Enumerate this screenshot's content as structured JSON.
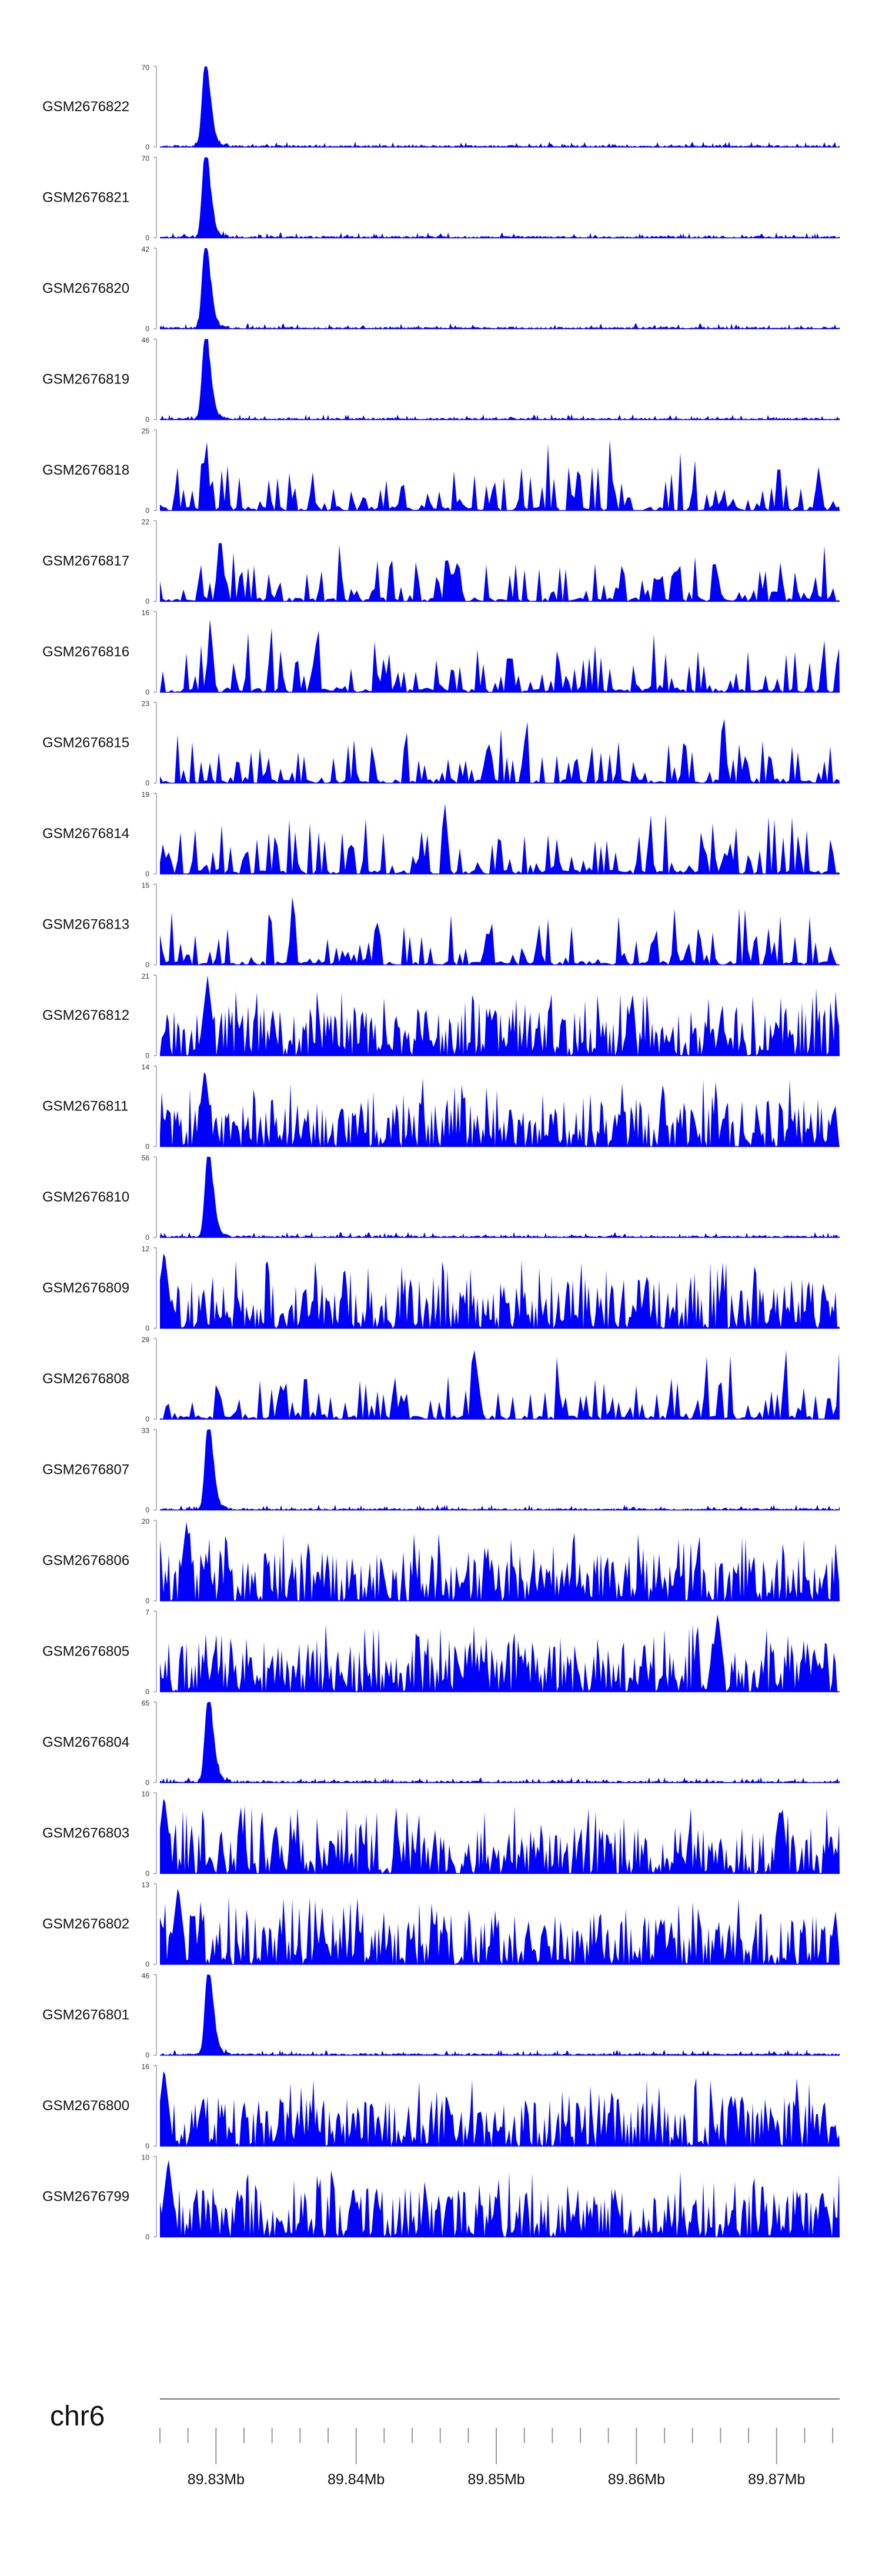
{
  "chart_data": {
    "type": "area",
    "subtype": "genome-coverage-tracks",
    "color": "#0000ff",
    "x_range_bp": [
      89826000,
      89874500
    ],
    "ylim_min": 0,
    "tracks": [
      {
        "name": "GSM2676822",
        "ymax": 70,
        "ymax_label": "70",
        "min_label": "0",
        "profile": "peak",
        "peak_bp": 89829200
      },
      {
        "name": "GSM2676821",
        "ymax": 70,
        "ymax_label": "70",
        "min_label": "0",
        "profile": "peak",
        "peak_bp": 89829200
      },
      {
        "name": "GSM2676820",
        "ymax": 42,
        "ymax_label": "42",
        "min_label": "0",
        "profile": "peak",
        "peak_bp": 89829200
      },
      {
        "name": "GSM2676819",
        "ymax": 46,
        "ymax_label": "46",
        "min_label": "0",
        "profile": "peak",
        "peak_bp": 89829200
      },
      {
        "name": "GSM2676818",
        "ymax": 25,
        "ymax_label": "25",
        "min_label": "0",
        "profile": "sparse",
        "peak_bp": 89829300
      },
      {
        "name": "GSM2676817",
        "ymax": 22,
        "ymax_label": "22",
        "min_label": "0",
        "profile": "sparse",
        "peak_bp": 89830300
      },
      {
        "name": "GSM2676816",
        "ymax": 16,
        "ymax_label": "16",
        "min_label": "0",
        "profile": "sparse",
        "peak_bp": 89829600
      },
      {
        "name": "GSM2676815",
        "ymax": 23,
        "ymax_label": "23",
        "min_label": "0",
        "profile": "sparse",
        "peak_bp": 89866200
      },
      {
        "name": "GSM2676814",
        "ymax": 19,
        "ymax_label": "19",
        "min_label": "0",
        "profile": "sparse",
        "peak_bp": 89846300
      },
      {
        "name": "GSM2676813",
        "ymax": 15,
        "ymax_label": "15",
        "min_label": "0",
        "profile": "sparse",
        "peak_bp": 89835500
      },
      {
        "name": "GSM2676812",
        "ymax": 21,
        "ymax_label": "21",
        "min_label": "0",
        "profile": "dense",
        "peak_bp": 89829400
      },
      {
        "name": "GSM2676811",
        "ymax": 14,
        "ymax_label": "14",
        "min_label": "0",
        "profile": "dense",
        "peak_bp": 89829200
      },
      {
        "name": "GSM2676810",
        "ymax": 56,
        "ymax_label": "56",
        "min_label": "0",
        "profile": "peak",
        "peak_bp": 89829400
      },
      {
        "name": "GSM2676809",
        "ymax": 12,
        "ymax_label": "12",
        "min_label": "0",
        "profile": "dense",
        "peak_bp": 89826300
      },
      {
        "name": "GSM2676808",
        "ymax": 29,
        "ymax_label": "29",
        "min_label": "0",
        "profile": "sparse",
        "peak_bp": 89848500
      },
      {
        "name": "GSM2676807",
        "ymax": 33,
        "ymax_label": "33",
        "min_label": "0",
        "profile": "peak",
        "peak_bp": 89829400
      },
      {
        "name": "GSM2676806",
        "ymax": 20,
        "ymax_label": "20",
        "min_label": "0",
        "profile": "dense",
        "peak_bp": 89827900
      },
      {
        "name": "GSM2676805",
        "ymax": 7,
        "ymax_label": "7",
        "min_label": "0",
        "profile": "dense",
        "peak_bp": 89865800
      },
      {
        "name": "GSM2676804",
        "ymax": 65,
        "ymax_label": "65",
        "min_label": "0",
        "profile": "peak",
        "peak_bp": 89829400
      },
      {
        "name": "GSM2676803",
        "ymax": 10,
        "ymax_label": "10",
        "min_label": "0",
        "profile": "dense",
        "peak_bp": 89826300
      },
      {
        "name": "GSM2676802",
        "ymax": 13,
        "ymax_label": "13",
        "min_label": "0",
        "profile": "dense",
        "peak_bp": 89827300
      },
      {
        "name": "GSM2676801",
        "ymax": 46,
        "ymax_label": "46",
        "min_label": "0",
        "profile": "peak",
        "peak_bp": 89829400
      },
      {
        "name": "GSM2676800",
        "ymax": 16,
        "ymax_label": "16",
        "min_label": "0",
        "profile": "dense",
        "peak_bp": 89826300
      },
      {
        "name": "GSM2676799",
        "ymax": 10,
        "ymax_label": "10",
        "min_label": "0",
        "profile": "dense",
        "peak_bp": 89826600
      }
    ],
    "axis": {
      "chromosome": "chr6",
      "major_ticks": [
        {
          "bp": 89830000,
          "label": "89.83Mb"
        },
        {
          "bp": 89840000,
          "label": "89.84Mb"
        },
        {
          "bp": 89850000,
          "label": "89.85Mb"
        },
        {
          "bp": 89860000,
          "label": "89.86Mb"
        },
        {
          "bp": 89870000,
          "label": "89.87Mb"
        }
      ],
      "minor_tick_step_bp": 2000
    }
  }
}
